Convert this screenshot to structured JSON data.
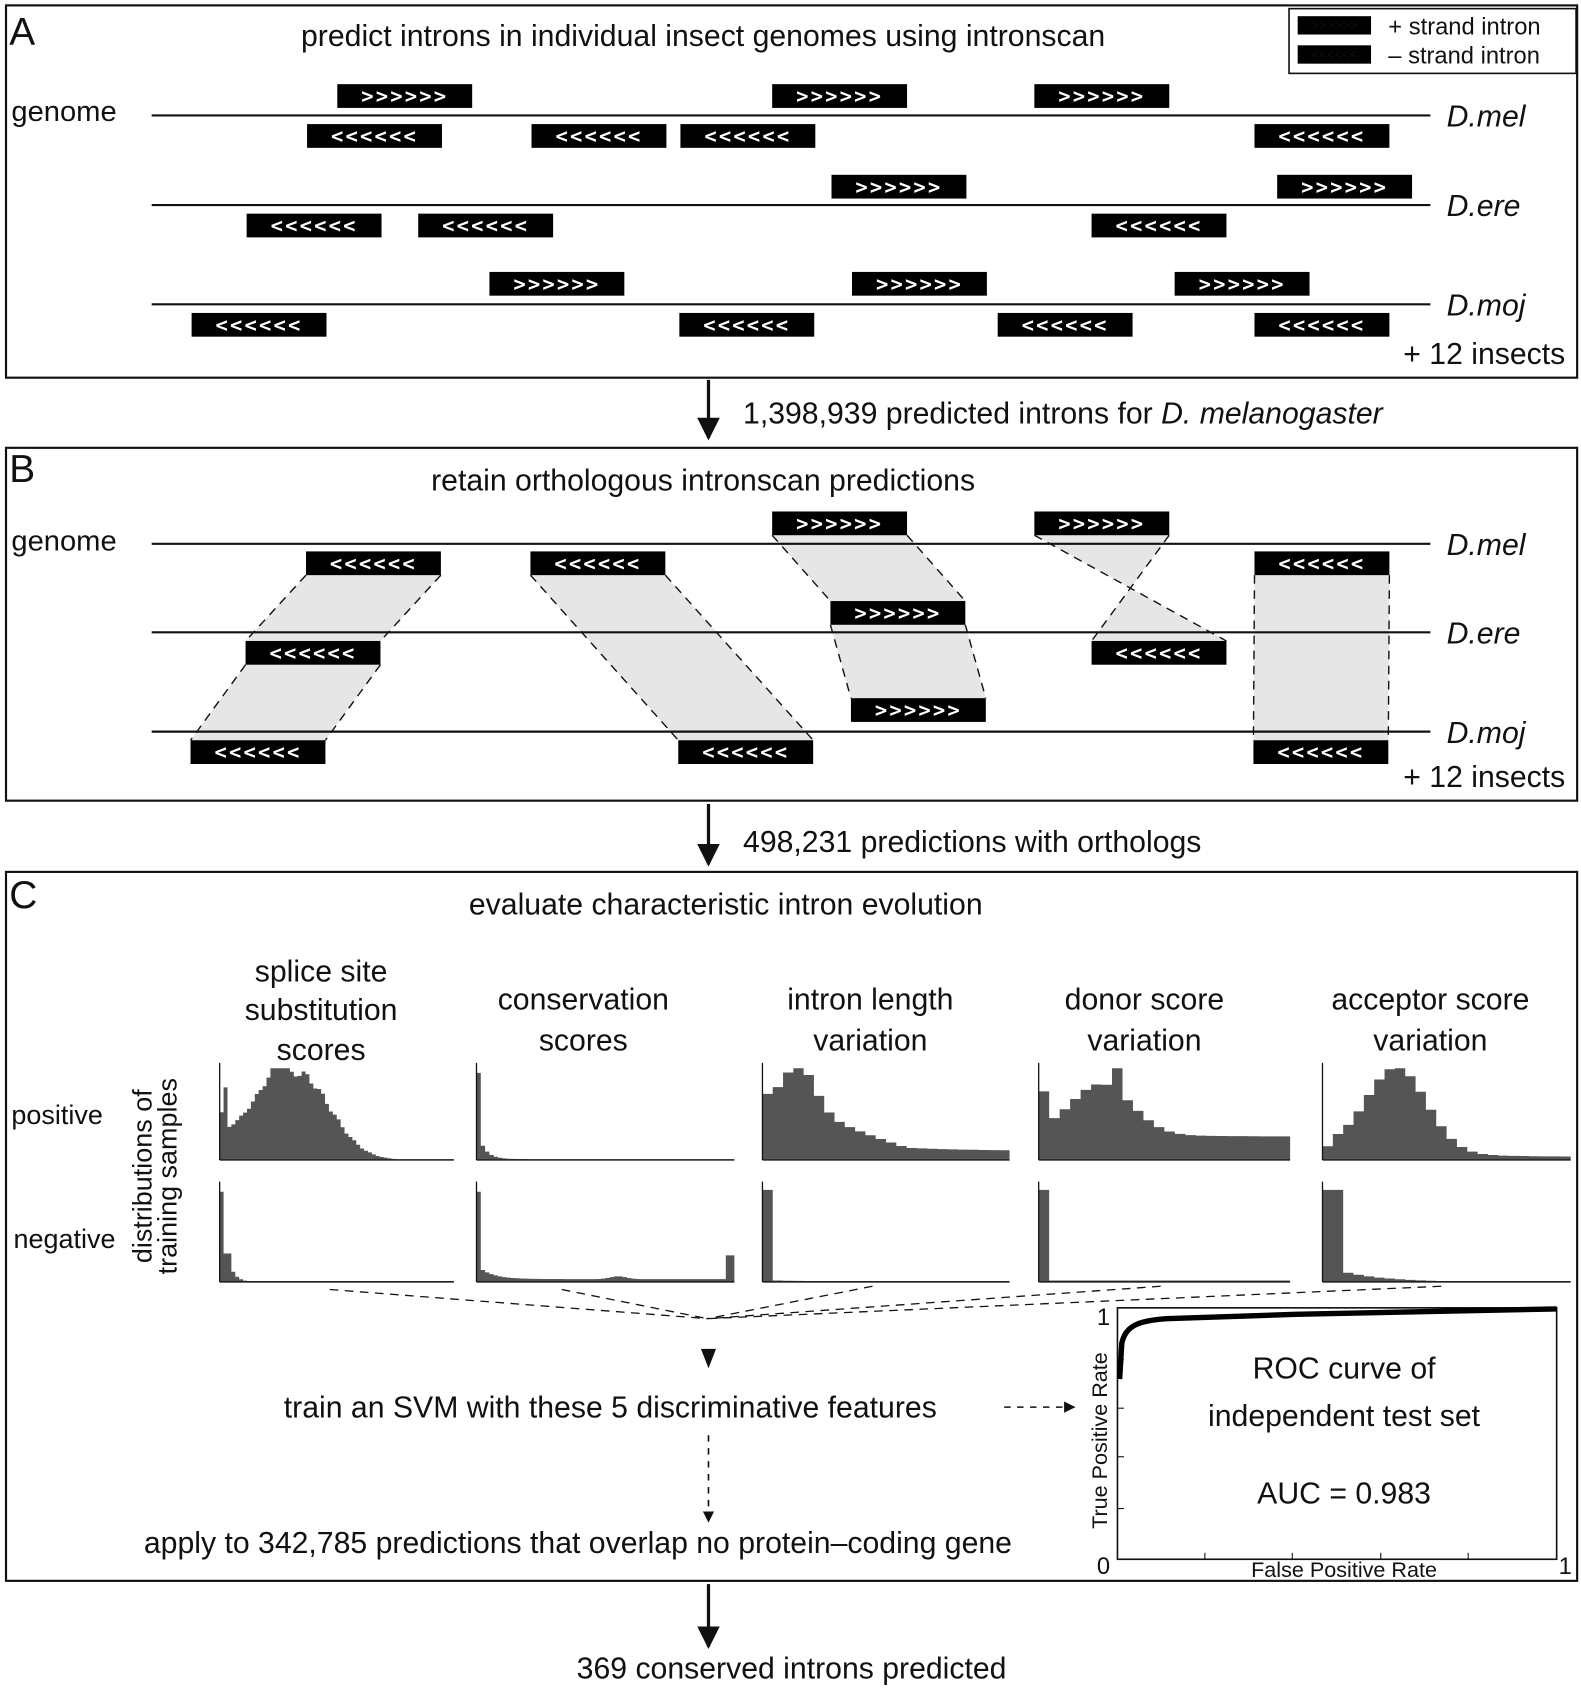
{
  "legend": {
    "plus_symbol": ">>>>>>",
    "plus_label": "+ strand intron",
    "minus_symbol": "<<<<<<",
    "minus_label": "– strand intron"
  },
  "panels": [
    {
      "letter": "A",
      "title": "predict introns in individual insect genomes using intronscan",
      "row_label": "genome",
      "species": [
        "D.mel",
        "D.ere",
        "D.moj"
      ],
      "more": "+ 12 insects"
    },
    {
      "letter": "B",
      "title": "retain orthologous intronscan predictions",
      "row_label": "genome",
      "species": [
        "D.mel",
        "D.ere",
        "D.moj"
      ],
      "more": "+ 12 insects"
    },
    {
      "letter": "C",
      "title": "evaluate characteristic intron evolution",
      "features": [
        [
          "splice site",
          "substitution",
          "scores"
        ],
        [
          "conservation",
          "scores"
        ],
        [
          "intron length",
          "variation"
        ],
        [
          "donor score",
          "variation"
        ],
        [
          "acceptor score",
          "variation"
        ]
      ],
      "row_labels": [
        "positive",
        "negative"
      ],
      "y_axis_label": [
        "distributions of",
        "training samples"
      ],
      "steps": [
        "train an SVM with these 5 discriminative features",
        "apply to 342,785 predictions that overlap no protein–coding gene"
      ],
      "roc": {
        "text": [
          "ROC curve of",
          "independent test set"
        ],
        "auc": "AUC = 0.983",
        "x_label": "False Positive Rate",
        "y_label": "True Positive Rate",
        "x_ticks": [
          0,
          1
        ],
        "y_ticks": [
          1
        ]
      }
    }
  ],
  "transitions": [
    {
      "text": "1,398,939 predicted introns for ",
      "species": "D. melanogaster"
    },
    {
      "text": "498,231 predictions with orthologs"
    }
  ],
  "result": "369 conserved introns predicted"
}
